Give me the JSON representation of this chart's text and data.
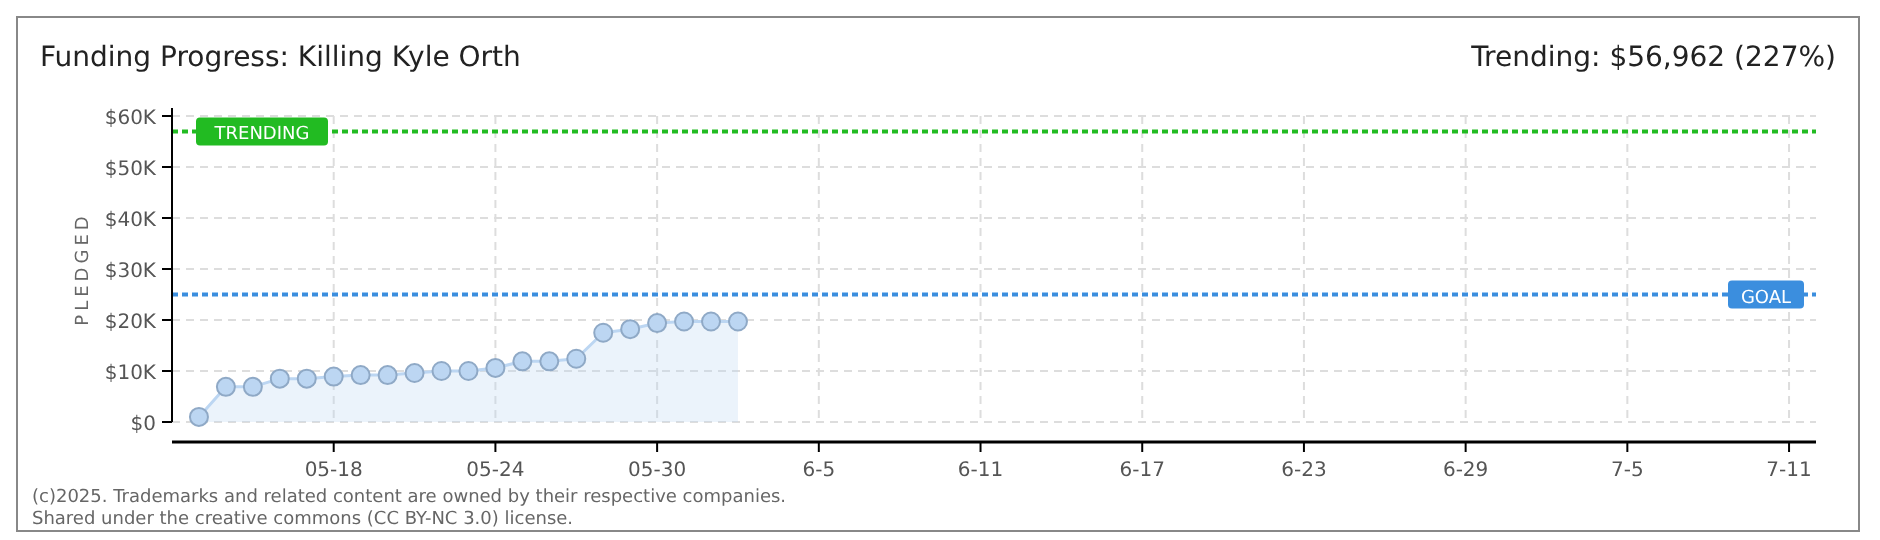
{
  "chart_data": {
    "type": "area",
    "title": "Funding Progress: Killing Kyle Orth",
    "ylabel": "PLEDGED",
    "annotations": [
      "Trending: $56,962 (227%)",
      "(c)2025. Trademarks and related content are owned by their respective companies.",
      "Shared under the creative commons (CC BY-NC 3.0) license."
    ],
    "x": [
      "2025-05-13",
      "2025-05-14",
      "2025-05-15",
      "2025-05-16",
      "2025-05-17",
      "2025-05-18",
      "2025-05-19",
      "2025-05-20",
      "2025-05-21",
      "2025-05-22",
      "2025-05-23",
      "2025-05-24",
      "2025-05-25",
      "2025-05-26",
      "2025-05-27",
      "2025-05-28",
      "2025-05-29",
      "2025-05-30",
      "2025-05-31",
      "2025-06-01",
      "2025-06-02"
    ],
    "series": [
      {
        "color": "#bcd6f2",
        "values": [
          1000,
          6900,
          6900,
          8500,
          8500,
          8900,
          9200,
          9200,
          9600,
          10000,
          10000,
          10600,
          11900,
          11900,
          12400,
          17500,
          18200,
          19400,
          19700,
          19700,
          19700
        ]
      }
    ],
    "xlim": [
      "2025-05-12",
      "2025-07-12"
    ],
    "xticks": [
      {
        "value": "2025-05-18",
        "label": "05-18"
      },
      {
        "value": "2025-05-24",
        "label": "05-24"
      },
      {
        "value": "2025-05-30",
        "label": "05-30"
      },
      {
        "value": "2025-06-05",
        "label": "6-5"
      },
      {
        "value": "2025-06-11",
        "label": "6-11"
      },
      {
        "value": "2025-06-17",
        "label": "6-17"
      },
      {
        "value": "2025-06-23",
        "label": "6-23"
      },
      {
        "value": "2025-06-29",
        "label": "6-29"
      },
      {
        "value": "2025-07-05",
        "label": "7-5"
      },
      {
        "value": "2025-07-11",
        "label": "7-11"
      }
    ],
    "ylim": [
      0,
      60000
    ],
    "yticks": [
      {
        "value": 0,
        "label": "$0"
      },
      {
        "value": 10000,
        "label": "$10K"
      },
      {
        "value": 20000,
        "label": "$20K"
      },
      {
        "value": 30000,
        "label": "$30K"
      },
      {
        "value": 40000,
        "label": "$40K"
      },
      {
        "value": 50000,
        "label": "$50K"
      },
      {
        "value": 60000,
        "label": "$60K"
      }
    ],
    "ref_lines": [
      {
        "axis": "y",
        "value": 56962,
        "label": "TRENDING",
        "color": "#22bb22",
        "line_style": "dotted"
      },
      {
        "axis": "y",
        "value": 25000,
        "label": "GOAL",
        "color": "#3b8ede",
        "line_style": "dotted"
      }
    ],
    "grid": true,
    "marker": "circle"
  }
}
